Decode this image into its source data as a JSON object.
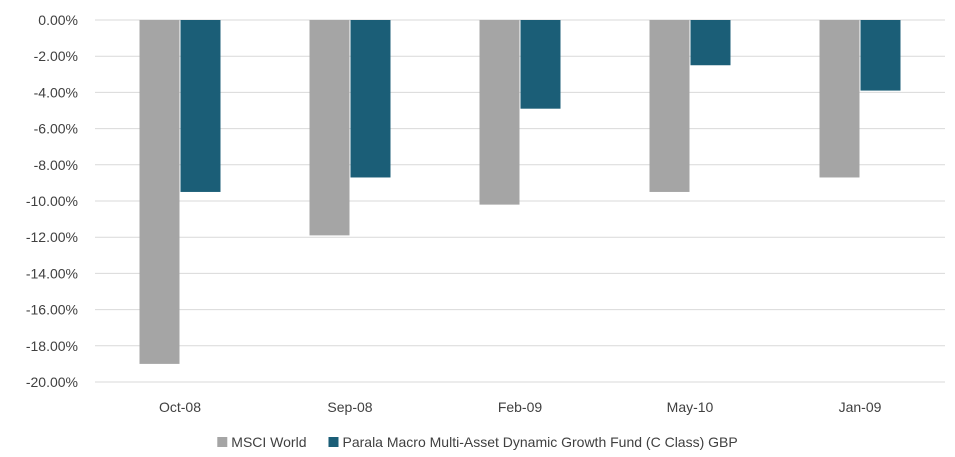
{
  "chart_data": {
    "type": "bar",
    "title": "",
    "xlabel": "",
    "ylabel": "",
    "categories": [
      "Oct-08",
      "Sep-08",
      "Feb-09",
      "May-10",
      "Jan-09"
    ],
    "series": [
      {
        "name": "MSCI World",
        "values": [
          -19.0,
          -11.9,
          -10.2,
          -9.5,
          -8.7
        ],
        "color": "#a5a5a5"
      },
      {
        "name": "Parala Macro Multi-Asset Dynamic Growth Fund (C Class) GBP",
        "values": [
          -9.5,
          -8.7,
          -4.9,
          -2.5,
          -3.9
        ],
        "color": "#1b5e77"
      }
    ],
    "ylim": [
      -20,
      0
    ],
    "yticks": [
      0,
      -2,
      -4,
      -6,
      -8,
      -10,
      -12,
      -14,
      -16,
      -18,
      -20
    ],
    "ytick_labels": [
      "0.00%",
      "-2.00%",
      "-4.00%",
      "-6.00%",
      "-8.00%",
      "-10.00%",
      "-12.00%",
      "-14.00%",
      "-16.00%",
      "-18.00%",
      "-20.00%"
    ],
    "grid": true,
    "legend_position": "bottom",
    "gridline_color": "#d9d9d9",
    "text_color": "#404040"
  }
}
